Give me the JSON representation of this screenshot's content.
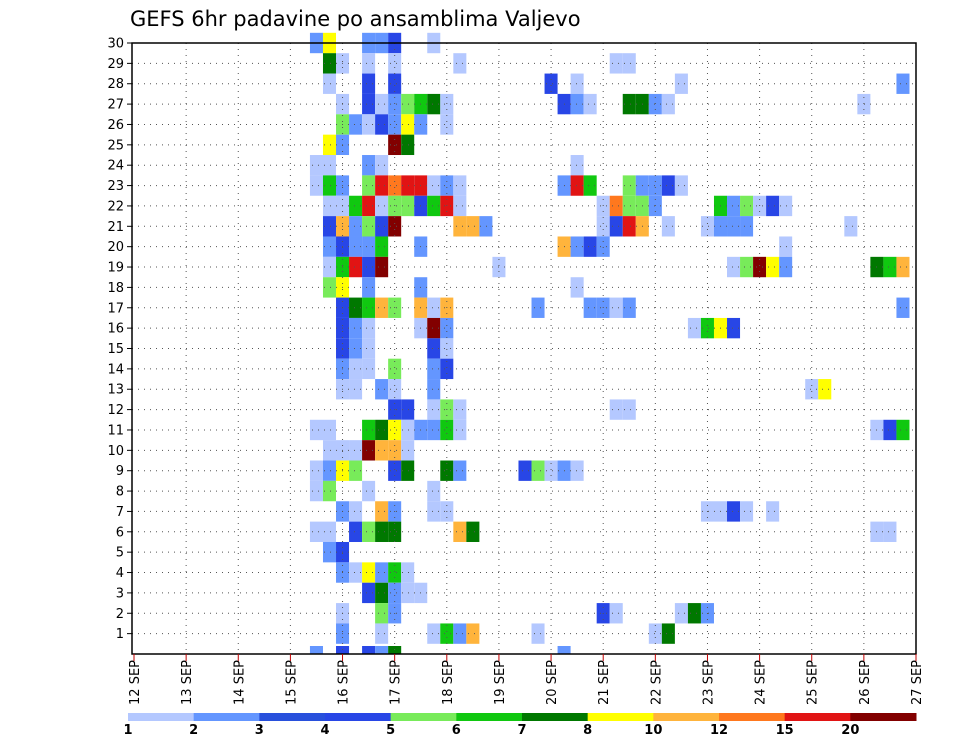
{
  "chart_data": {
    "type": "heatmap",
    "title": "GEFS 6hr padavine po ansamblima Valjevo",
    "x_labels": [
      "12 SEP",
      "13 SEP",
      "14 SEP",
      "15 SEP",
      "16 SEP",
      "17 SEP",
      "18 SEP",
      "19 SEP",
      "20 SEP",
      "21 SEP",
      "22 SEP",
      "23 SEP",
      "24 SEP",
      "25 SEP",
      "26 SEP",
      "27 SEP"
    ],
    "x_range": [
      0,
      60
    ],
    "steps_per_day": 4,
    "y_labels": [
      "1",
      "2",
      "3",
      "4",
      "5",
      "6",
      "7",
      "8",
      "9",
      "10",
      "11",
      "12",
      "13",
      "14",
      "15",
      "16",
      "17",
      "18",
      "19",
      "20",
      "21",
      "22",
      "23",
      "24",
      "25",
      "26",
      "27",
      "28",
      "29",
      "30"
    ],
    "y_range": [
      0,
      30
    ],
    "grid": true,
    "legend": {
      "position": "bottom",
      "labels": [
        "1",
        "2",
        "3",
        "4",
        "5",
        "6",
        "7",
        "8",
        "10",
        "12",
        "15",
        "20"
      ],
      "colors": [
        "#b4c8ff",
        "#6496ff",
        "#2850dc",
        "#2846e6",
        "#78eb5a",
        "#10c810",
        "#007800",
        "#ffff00",
        "#ffb43c",
        "#ff781e",
        "#e11414",
        "#820000"
      ]
    },
    "cells": [
      [
        14,
        30,
        2
      ],
      [
        15,
        30,
        8
      ],
      [
        18,
        30,
        2
      ],
      [
        19,
        30,
        2
      ],
      [
        20,
        30,
        4
      ],
      [
        23,
        30,
        1
      ],
      [
        15,
        29,
        7
      ],
      [
        16,
        29,
        1
      ],
      [
        18,
        29,
        1
      ],
      [
        20,
        29,
        1
      ],
      [
        25,
        29,
        1
      ],
      [
        37,
        29,
        1
      ],
      [
        38,
        29,
        1
      ],
      [
        15,
        28,
        1
      ],
      [
        18,
        28,
        4
      ],
      [
        20,
        28,
        4
      ],
      [
        32,
        28,
        4
      ],
      [
        34,
        28,
        1
      ],
      [
        42,
        28,
        1
      ],
      [
        59,
        28,
        2
      ],
      [
        16,
        27,
        1
      ],
      [
        18,
        27,
        4
      ],
      [
        19,
        27,
        1
      ],
      [
        20,
        27,
        2
      ],
      [
        21,
        27,
        5
      ],
      [
        22,
        27,
        6
      ],
      [
        23,
        27,
        7
      ],
      [
        24,
        27,
        1
      ],
      [
        33,
        27,
        4
      ],
      [
        34,
        27,
        2
      ],
      [
        35,
        27,
        1
      ],
      [
        38,
        27,
        7
      ],
      [
        39,
        27,
        7
      ],
      [
        40,
        27,
        2
      ],
      [
        41,
        27,
        1
      ],
      [
        56,
        27,
        1
      ],
      [
        16,
        26,
        5
      ],
      [
        17,
        26,
        2
      ],
      [
        18,
        26,
        1
      ],
      [
        19,
        26,
        4
      ],
      [
        20,
        26,
        2
      ],
      [
        21,
        26,
        8
      ],
      [
        22,
        26,
        2
      ],
      [
        24,
        26,
        1
      ],
      [
        15,
        25,
        8
      ],
      [
        16,
        25,
        2
      ],
      [
        20,
        25,
        12
      ],
      [
        21,
        25,
        7
      ],
      [
        14,
        24,
        1
      ],
      [
        15,
        24,
        1
      ],
      [
        18,
        24,
        2
      ],
      [
        19,
        24,
        1
      ],
      [
        34,
        24,
        1
      ],
      [
        14,
        23,
        1
      ],
      [
        15,
        23,
        6
      ],
      [
        16,
        23,
        2
      ],
      [
        18,
        23,
        5
      ],
      [
        19,
        23,
        11
      ],
      [
        20,
        23,
        10
      ],
      [
        21,
        23,
        11
      ],
      [
        22,
        23,
        11
      ],
      [
        23,
        23,
        1
      ],
      [
        24,
        23,
        2
      ],
      [
        25,
        23,
        1
      ],
      [
        33,
        23,
        2
      ],
      [
        34,
        23,
        11
      ],
      [
        35,
        23,
        6
      ],
      [
        38,
        23,
        5
      ],
      [
        39,
        23,
        2
      ],
      [
        40,
        23,
        2
      ],
      [
        41,
        23,
        4
      ],
      [
        42,
        23,
        1
      ],
      [
        15,
        22,
        1
      ],
      [
        16,
        22,
        1
      ],
      [
        17,
        22,
        6
      ],
      [
        18,
        22,
        11
      ],
      [
        19,
        22,
        1
      ],
      [
        20,
        22,
        5
      ],
      [
        21,
        22,
        5
      ],
      [
        22,
        22,
        4
      ],
      [
        23,
        22,
        6
      ],
      [
        24,
        22,
        11
      ],
      [
        25,
        22,
        1
      ],
      [
        36,
        22,
        1
      ],
      [
        37,
        22,
        10
      ],
      [
        38,
        22,
        5
      ],
      [
        39,
        22,
        5
      ],
      [
        40,
        22,
        2
      ],
      [
        45,
        22,
        6
      ],
      [
        46,
        22,
        2
      ],
      [
        47,
        22,
        5
      ],
      [
        48,
        22,
        1
      ],
      [
        49,
        22,
        4
      ],
      [
        50,
        22,
        1
      ],
      [
        15,
        21,
        4
      ],
      [
        16,
        21,
        9
      ],
      [
        17,
        21,
        2
      ],
      [
        18,
        21,
        5
      ],
      [
        19,
        21,
        4
      ],
      [
        20,
        21,
        12
      ],
      [
        25,
        21,
        9
      ],
      [
        26,
        21,
        9
      ],
      [
        27,
        21,
        2
      ],
      [
        36,
        21,
        1
      ],
      [
        37,
        21,
        4
      ],
      [
        38,
        21,
        11
      ],
      [
        39,
        21,
        9
      ],
      [
        41,
        21,
        1
      ],
      [
        44,
        21,
        1
      ],
      [
        45,
        21,
        2
      ],
      [
        46,
        21,
        2
      ],
      [
        47,
        21,
        2
      ],
      [
        55,
        21,
        1
      ],
      [
        15,
        20,
        2
      ],
      [
        16,
        20,
        4
      ],
      [
        17,
        20,
        2
      ],
      [
        18,
        20,
        2
      ],
      [
        19,
        20,
        6
      ],
      [
        22,
        20,
        2
      ],
      [
        33,
        20,
        9
      ],
      [
        34,
        20,
        2
      ],
      [
        35,
        20,
        4
      ],
      [
        36,
        20,
        2
      ],
      [
        50,
        20,
        1
      ],
      [
        15,
        19,
        1
      ],
      [
        16,
        19,
        6
      ],
      [
        17,
        19,
        11
      ],
      [
        18,
        19,
        4
      ],
      [
        19,
        19,
        12
      ],
      [
        28,
        19,
        1
      ],
      [
        46,
        19,
        1
      ],
      [
        47,
        19,
        5
      ],
      [
        48,
        19,
        12
      ],
      [
        49,
        19,
        8
      ],
      [
        50,
        19,
        2
      ],
      [
        57,
        19,
        7
      ],
      [
        58,
        19,
        6
      ],
      [
        59,
        19,
        9
      ],
      [
        15,
        18,
        5
      ],
      [
        16,
        18,
        8
      ],
      [
        18,
        18,
        2
      ],
      [
        22,
        18,
        2
      ],
      [
        34,
        18,
        1
      ],
      [
        16,
        17,
        4
      ],
      [
        17,
        17,
        7
      ],
      [
        18,
        17,
        6
      ],
      [
        19,
        17,
        9
      ],
      [
        20,
        17,
        5
      ],
      [
        22,
        17,
        9
      ],
      [
        23,
        17,
        1
      ],
      [
        24,
        17,
        9
      ],
      [
        31,
        17,
        2
      ],
      [
        35,
        17,
        2
      ],
      [
        36,
        17,
        2
      ],
      [
        37,
        17,
        1
      ],
      [
        38,
        17,
        2
      ],
      [
        59,
        17,
        2
      ],
      [
        16,
        16,
        4
      ],
      [
        17,
        16,
        2
      ],
      [
        18,
        16,
        1
      ],
      [
        22,
        16,
        1
      ],
      [
        23,
        16,
        12
      ],
      [
        24,
        16,
        2
      ],
      [
        43,
        16,
        1
      ],
      [
        44,
        16,
        6
      ],
      [
        45,
        16,
        8
      ],
      [
        46,
        16,
        4
      ],
      [
        16,
        15,
        4
      ],
      [
        17,
        15,
        2
      ],
      [
        18,
        15,
        1
      ],
      [
        23,
        15,
        4
      ],
      [
        24,
        15,
        1
      ],
      [
        16,
        14,
        2
      ],
      [
        17,
        14,
        1
      ],
      [
        18,
        14,
        1
      ],
      [
        20,
        14,
        5
      ],
      [
        23,
        14,
        2
      ],
      [
        24,
        14,
        4
      ],
      [
        16,
        13,
        1
      ],
      [
        17,
        13,
        1
      ],
      [
        19,
        13,
        2
      ],
      [
        20,
        13,
        1
      ],
      [
        23,
        13,
        2
      ],
      [
        52,
        13,
        1
      ],
      [
        53,
        13,
        8
      ],
      [
        20,
        12,
        4
      ],
      [
        21,
        12,
        4
      ],
      [
        23,
        12,
        1
      ],
      [
        24,
        12,
        5
      ],
      [
        25,
        12,
        1
      ],
      [
        37,
        12,
        1
      ],
      [
        38,
        12,
        1
      ],
      [
        14,
        11,
        1
      ],
      [
        15,
        11,
        1
      ],
      [
        18,
        11,
        6
      ],
      [
        19,
        11,
        7
      ],
      [
        20,
        11,
        8
      ],
      [
        21,
        11,
        1
      ],
      [
        22,
        11,
        2
      ],
      [
        23,
        11,
        2
      ],
      [
        24,
        11,
        6
      ],
      [
        25,
        11,
        1
      ],
      [
        57,
        11,
        1
      ],
      [
        58,
        11,
        4
      ],
      [
        59,
        11,
        6
      ],
      [
        15,
        10,
        1
      ],
      [
        16,
        10,
        1
      ],
      [
        17,
        10,
        1
      ],
      [
        18,
        10,
        12
      ],
      [
        19,
        10,
        9
      ],
      [
        20,
        10,
        9
      ],
      [
        21,
        10,
        1
      ],
      [
        14,
        9,
        1
      ],
      [
        15,
        9,
        2
      ],
      [
        16,
        9,
        8
      ],
      [
        17,
        9,
        5
      ],
      [
        20,
        9,
        4
      ],
      [
        21,
        9,
        7
      ],
      [
        24,
        9,
        7
      ],
      [
        25,
        9,
        2
      ],
      [
        30,
        9,
        4
      ],
      [
        31,
        9,
        5
      ],
      [
        32,
        9,
        1
      ],
      [
        33,
        9,
        2
      ],
      [
        34,
        9,
        1
      ],
      [
        14,
        8,
        1
      ],
      [
        15,
        8,
        5
      ],
      [
        18,
        8,
        1
      ],
      [
        23,
        8,
        1
      ],
      [
        16,
        7,
        2
      ],
      [
        17,
        7,
        1
      ],
      [
        19,
        7,
        9
      ],
      [
        20,
        7,
        2
      ],
      [
        23,
        7,
        1
      ],
      [
        24,
        7,
        1
      ],
      [
        44,
        7,
        1
      ],
      [
        45,
        7,
        1
      ],
      [
        46,
        7,
        4
      ],
      [
        47,
        7,
        1
      ],
      [
        49,
        7,
        1
      ],
      [
        14,
        6,
        1
      ],
      [
        15,
        6,
        1
      ],
      [
        17,
        6,
        4
      ],
      [
        18,
        6,
        5
      ],
      [
        19,
        6,
        7
      ],
      [
        20,
        6,
        7
      ],
      [
        25,
        6,
        9
      ],
      [
        26,
        6,
        7
      ],
      [
        57,
        6,
        1
      ],
      [
        58,
        6,
        1
      ],
      [
        15,
        5,
        2
      ],
      [
        16,
        5,
        4
      ],
      [
        16,
        4,
        2
      ],
      [
        17,
        4,
        1
      ],
      [
        18,
        4,
        8
      ],
      [
        19,
        4,
        2
      ],
      [
        20,
        4,
        6
      ],
      [
        21,
        4,
        1
      ],
      [
        18,
        3,
        4
      ],
      [
        19,
        3,
        7
      ],
      [
        20,
        3,
        2
      ],
      [
        21,
        3,
        1
      ],
      [
        22,
        3,
        1
      ],
      [
        16,
        2,
        1
      ],
      [
        19,
        2,
        5
      ],
      [
        20,
        2,
        2
      ],
      [
        36,
        2,
        4
      ],
      [
        37,
        2,
        1
      ],
      [
        42,
        2,
        1
      ],
      [
        43,
        2,
        7
      ],
      [
        44,
        2,
        2
      ],
      [
        16,
        1,
        2
      ],
      [
        19,
        1,
        1
      ],
      [
        23,
        1,
        1
      ],
      [
        24,
        1,
        6
      ],
      [
        25,
        1,
        2
      ],
      [
        26,
        1,
        9
      ],
      [
        31,
        1,
        1
      ],
      [
        40,
        1,
        1
      ],
      [
        41,
        1,
        7
      ],
      [
        14,
        0,
        2
      ],
      [
        16,
        0,
        4
      ],
      [
        18,
        0,
        4
      ],
      [
        19,
        0,
        2
      ],
      [
        20,
        0,
        7
      ],
      [
        33,
        0,
        2
      ]
    ]
  }
}
